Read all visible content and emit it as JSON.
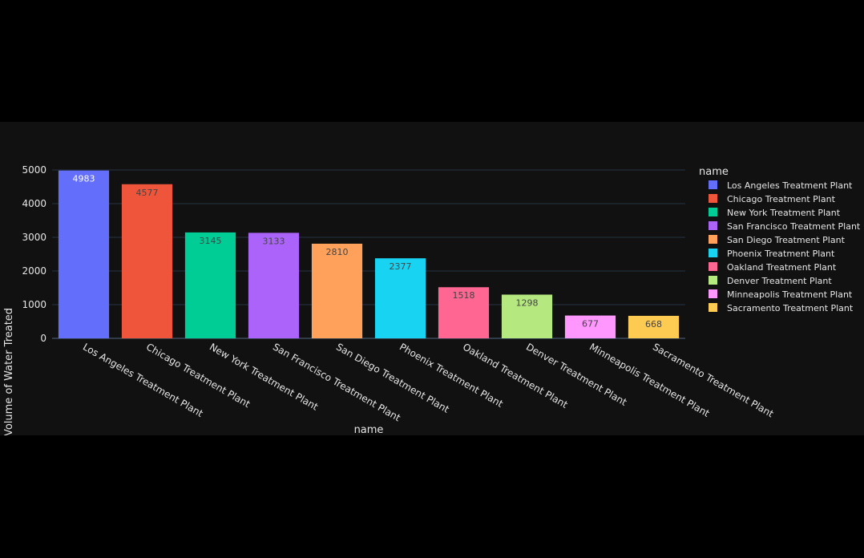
{
  "chart_data": {
    "type": "bar",
    "categories": [
      "Los Angeles Treatment Plant",
      "Chicago Treatment Plant",
      "New York Treatment Plant",
      "San Francisco Treatment Plant",
      "San Diego Treatment Plant",
      "Phoenix Treatment Plant",
      "Oakland Treatment Plant",
      "Denver Treatment Plant",
      "Minneapolis Treatment Plant",
      "Sacramento Treatment Plant"
    ],
    "values": [
      4983,
      4577,
      3145,
      3133,
      2810,
      2377,
      1518,
      1298,
      677,
      668
    ],
    "value_labels": [
      "4983",
      "4577",
      "3145",
      "3133",
      "2810",
      "2377",
      "1518",
      "1298",
      "677",
      "668"
    ],
    "colors": [
      "#636efa",
      "#EF553B",
      "#00cc96",
      "#ab63fa",
      "#FFA15A",
      "#19d3f3",
      "#FF6692",
      "#B6E880",
      "#FF97FF",
      "#FECB52"
    ],
    "label_colors": [
      "#ffffff",
      "#444444",
      "#444444",
      "#444444",
      "#444444",
      "#444444",
      "#444444",
      "#444444",
      "#444444",
      "#444444"
    ],
    "xlabel": "name",
    "ylabel": "Volume of Water Treated",
    "ylim": [
      0,
      5000
    ],
    "yticks": [
      0,
      1000,
      2000,
      3000,
      4000,
      5000
    ],
    "ytick_labels": [
      "0",
      "1000",
      "2000",
      "3000",
      "4000",
      "5000"
    ],
    "legend_title": "name",
    "legend_position": "right",
    "grid": true,
    "background": "#111111",
    "grid_color": "#283442"
  }
}
